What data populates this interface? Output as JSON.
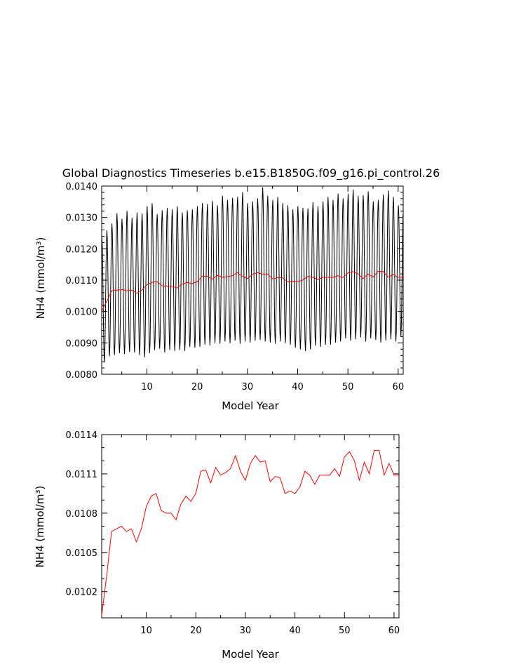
{
  "figure": {
    "title": "Global Diagnostics Timeseries b.e15.B1850G.f09_g16.pi_control.26"
  },
  "colors": {
    "monthly_series": "#000000",
    "annual_series": "#ff0000",
    "axes": "#000000"
  },
  "chart_data": [
    {
      "type": "line",
      "title": "Global Diagnostics Timeseries b.e15.B1850G.f09_g16.pi_control.26",
      "xlabel": "Model Year",
      "ylabel": "NH4 (mmol/m³)",
      "xlim": [
        1,
        61
      ],
      "ylim": [
        0.008,
        0.014
      ],
      "x_ticks": [
        10,
        20,
        30,
        40,
        50,
        60
      ],
      "y_ticks": [
        "0.0080",
        "0.0090",
        "0.0100",
        "0.0110",
        "0.0120",
        "0.0130",
        "0.0140"
      ],
      "grid": false,
      "series": [
        {
          "color": "#000000",
          "monthly_cycle": "peak near start of year, trough mid-year; one oscillation per model year",
          "annual_peaks": [
            0.01235,
            0.01258,
            0.0128,
            0.01312,
            0.01295,
            0.0132,
            0.01298,
            0.01315,
            0.01312,
            0.01335,
            0.01345,
            0.0131,
            0.01322,
            0.0133,
            0.01325,
            0.01335,
            0.01315,
            0.01322,
            0.01325,
            0.01335,
            0.01345,
            0.01342,
            0.01352,
            0.01338,
            0.01368,
            0.01355,
            0.01362,
            0.01365,
            0.0138,
            0.01345,
            0.0135,
            0.0136,
            0.01395,
            0.01368,
            0.01355,
            0.01365,
            0.01345,
            0.01338,
            0.01325,
            0.01335,
            0.0133,
            0.01328,
            0.01348,
            0.01335,
            0.0135,
            0.01365,
            0.01355,
            0.01375,
            0.0136,
            0.01375,
            0.01388,
            0.01368,
            0.0137,
            0.01382,
            0.0135,
            0.01355,
            0.01372,
            0.01385,
            0.01365,
            0.01338
          ],
          "annual_troughs": [
            0.00838,
            0.00858,
            0.00862,
            0.00868,
            0.00865,
            0.00872,
            0.0087,
            0.00862,
            0.00855,
            0.00868,
            0.00878,
            0.00882,
            0.0087,
            0.00878,
            0.00875,
            0.00878,
            0.00875,
            0.00888,
            0.00885,
            0.00888,
            0.00895,
            0.00892,
            0.009,
            0.00898,
            0.00905,
            0.009,
            0.00908,
            0.00898,
            0.00905,
            0.00902,
            0.00908,
            0.0091,
            0.00905,
            0.00902,
            0.00898,
            0.00905,
            0.009,
            0.00895,
            0.00885,
            0.0088,
            0.00875,
            0.0088,
            0.00892,
            0.00888,
            0.00895,
            0.00895,
            0.00902,
            0.00905,
            0.00915,
            0.00908,
            0.00912,
            0.00918,
            0.00905,
            0.00915,
            0.0091,
            0.00902,
            0.00908,
            0.00912,
            0.00905,
            0.00922
          ]
        },
        {
          "color": "#ff0000",
          "x": [
            1,
            2,
            3,
            4,
            5,
            6,
            7,
            8,
            9,
            10,
            11,
            12,
            13,
            14,
            15,
            16,
            17,
            18,
            19,
            20,
            21,
            22,
            23,
            24,
            25,
            26,
            27,
            28,
            29,
            30,
            31,
            32,
            33,
            34,
            35,
            36,
            37,
            38,
            39,
            40,
            41,
            42,
            43,
            44,
            45,
            46,
            47,
            48,
            49,
            50,
            51,
            52,
            53,
            54,
            55,
            56,
            57,
            58,
            59,
            60,
            61
          ],
          "y": [
            0.01002,
            0.01032,
            0.01066,
            0.01068,
            0.0107,
            0.01066,
            0.01068,
            0.01058,
            0.01068,
            0.01085,
            0.01093,
            0.01095,
            0.01082,
            0.0108,
            0.0108,
            0.01075,
            0.01087,
            0.01093,
            0.01089,
            0.01095,
            0.01112,
            0.01113,
            0.01103,
            0.01115,
            0.01109,
            0.01111,
            0.01114,
            0.01124,
            0.01112,
            0.01105,
            0.01118,
            0.01124,
            0.01119,
            0.0112,
            0.01104,
            0.01108,
            0.01107,
            0.01095,
            0.01097,
            0.01095,
            0.011,
            0.01112,
            0.01109,
            0.01102,
            0.01109,
            0.01109,
            0.01109,
            0.01114,
            0.01108,
            0.01123,
            0.01127,
            0.0112,
            0.01105,
            0.01119,
            0.0111,
            0.01128,
            0.01128,
            0.01109,
            0.01118,
            0.01109,
            0.01109
          ]
        }
      ]
    },
    {
      "type": "line",
      "title": "",
      "xlabel": "Model Year",
      "ylabel": "NH4 (mmol/m³)",
      "xlim": [
        1,
        61
      ],
      "ylim": [
        0.01,
        0.0114
      ],
      "x_ticks": [
        10,
        20,
        30,
        40,
        50,
        60
      ],
      "y_ticks": [
        "0.0102",
        "0.0105",
        "0.0108",
        "0.0111",
        "0.0114"
      ],
      "grid": false,
      "series": [
        {
          "color": "#ff0000",
          "x": [
            1,
            2,
            3,
            4,
            5,
            6,
            7,
            8,
            9,
            10,
            11,
            12,
            13,
            14,
            15,
            16,
            17,
            18,
            19,
            20,
            21,
            22,
            23,
            24,
            25,
            26,
            27,
            28,
            29,
            30,
            31,
            32,
            33,
            34,
            35,
            36,
            37,
            38,
            39,
            40,
            41,
            42,
            43,
            44,
            45,
            46,
            47,
            48,
            49,
            50,
            51,
            52,
            53,
            54,
            55,
            56,
            57,
            58,
            59,
            60,
            61
          ],
          "y": [
            0.01002,
            0.01032,
            0.01066,
            0.01068,
            0.0107,
            0.01066,
            0.01068,
            0.01058,
            0.01068,
            0.01085,
            0.01093,
            0.01095,
            0.01082,
            0.0108,
            0.0108,
            0.01075,
            0.01087,
            0.01093,
            0.01089,
            0.01095,
            0.01112,
            0.01113,
            0.01103,
            0.01115,
            0.01109,
            0.01111,
            0.01114,
            0.01124,
            0.01112,
            0.01105,
            0.01118,
            0.01124,
            0.01119,
            0.0112,
            0.01104,
            0.01108,
            0.01107,
            0.01095,
            0.01097,
            0.01095,
            0.011,
            0.01112,
            0.01109,
            0.01102,
            0.01109,
            0.01109,
            0.01109,
            0.01114,
            0.01108,
            0.01123,
            0.01127,
            0.0112,
            0.01105,
            0.01119,
            0.0111,
            0.01128,
            0.01128,
            0.01109,
            0.01118,
            0.01109,
            0.01109
          ]
        }
      ]
    }
  ]
}
